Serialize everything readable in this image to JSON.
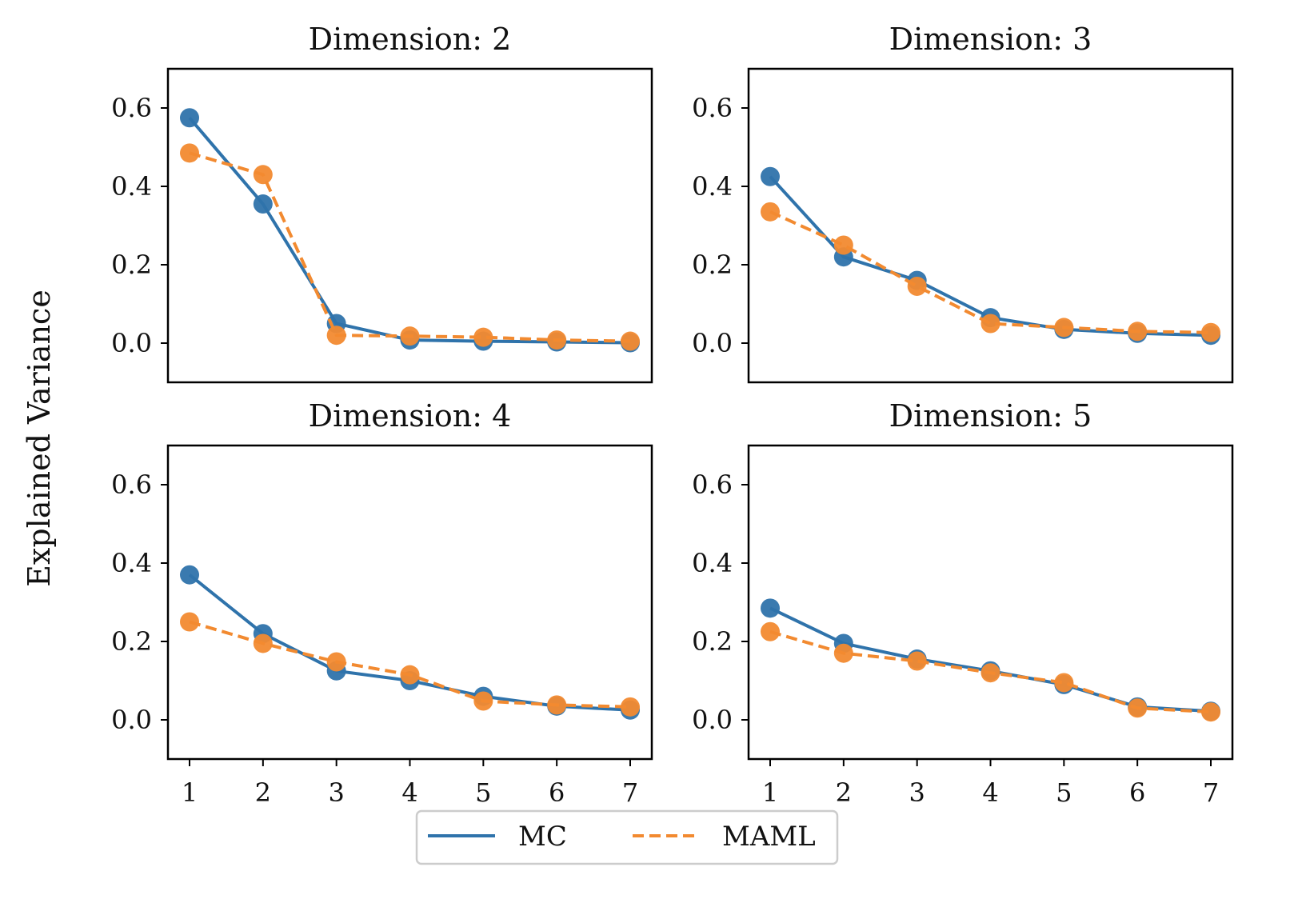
{
  "figure": {
    "ylabel": "Explained Variance"
  },
  "colors": {
    "mc": "#2f73ab",
    "maml": "#f28a30",
    "axes": "#000000"
  },
  "legend": {
    "placement": "bottom-center",
    "items": [
      {
        "label": "MC",
        "style": "solid",
        "color": "#2f73ab"
      },
      {
        "label": "MAML",
        "style": "dashed",
        "color": "#f28a30"
      }
    ]
  },
  "chart_data": [
    {
      "type": "line",
      "title": "Dimension: 2",
      "x": [
        1,
        2,
        3,
        4,
        5,
        6,
        7
      ],
      "xticks": [
        "1",
        "2",
        "3",
        "4",
        "5",
        "6",
        "7"
      ],
      "show_xticks": false,
      "ylim": [
        -0.1,
        0.7
      ],
      "yticks": [
        "0.0",
        "0.2",
        "0.4",
        "0.6"
      ],
      "grid": false,
      "series": [
        {
          "name": "MC",
          "values": [
            0.575,
            0.355,
            0.05,
            0.008,
            0.005,
            0.003,
            0.001
          ]
        },
        {
          "name": "MAML",
          "values": [
            0.485,
            0.43,
            0.02,
            0.018,
            0.015,
            0.008,
            0.005
          ]
        }
      ]
    },
    {
      "type": "line",
      "title": "Dimension: 3",
      "x": [
        1,
        2,
        3,
        4,
        5,
        6,
        7
      ],
      "xticks": [
        "1",
        "2",
        "3",
        "4",
        "5",
        "6",
        "7"
      ],
      "show_xticks": false,
      "ylim": [
        -0.1,
        0.7
      ],
      "yticks": [
        "0.0",
        "0.2",
        "0.4",
        "0.6"
      ],
      "grid": false,
      "series": [
        {
          "name": "MC",
          "values": [
            0.425,
            0.22,
            0.16,
            0.065,
            0.035,
            0.025,
            0.02
          ]
        },
        {
          "name": "MAML",
          "values": [
            0.335,
            0.25,
            0.145,
            0.05,
            0.04,
            0.03,
            0.027
          ]
        }
      ]
    },
    {
      "type": "line",
      "title": "Dimension: 4",
      "x": [
        1,
        2,
        3,
        4,
        5,
        6,
        7
      ],
      "xticks": [
        "1",
        "2",
        "3",
        "4",
        "5",
        "6",
        "7"
      ],
      "show_xticks": true,
      "ylim": [
        -0.1,
        0.7
      ],
      "yticks": [
        "0.0",
        "0.2",
        "0.4",
        "0.6"
      ],
      "grid": false,
      "series": [
        {
          "name": "MC",
          "values": [
            0.37,
            0.22,
            0.125,
            0.1,
            0.06,
            0.035,
            0.025
          ]
        },
        {
          "name": "MAML",
          "values": [
            0.25,
            0.195,
            0.148,
            0.115,
            0.048,
            0.038,
            0.033
          ]
        }
      ]
    },
    {
      "type": "line",
      "title": "Dimension: 5",
      "x": [
        1,
        2,
        3,
        4,
        5,
        6,
        7
      ],
      "xticks": [
        "1",
        "2",
        "3",
        "4",
        "5",
        "6",
        "7"
      ],
      "show_xticks": true,
      "ylim": [
        -0.1,
        0.7
      ],
      "yticks": [
        "0.0",
        "0.2",
        "0.4",
        "0.6"
      ],
      "grid": false,
      "series": [
        {
          "name": "MC",
          "values": [
            0.285,
            0.195,
            0.155,
            0.125,
            0.09,
            0.033,
            0.022
          ]
        },
        {
          "name": "MAML",
          "values": [
            0.225,
            0.17,
            0.15,
            0.12,
            0.095,
            0.03,
            0.02
          ]
        }
      ]
    }
  ]
}
